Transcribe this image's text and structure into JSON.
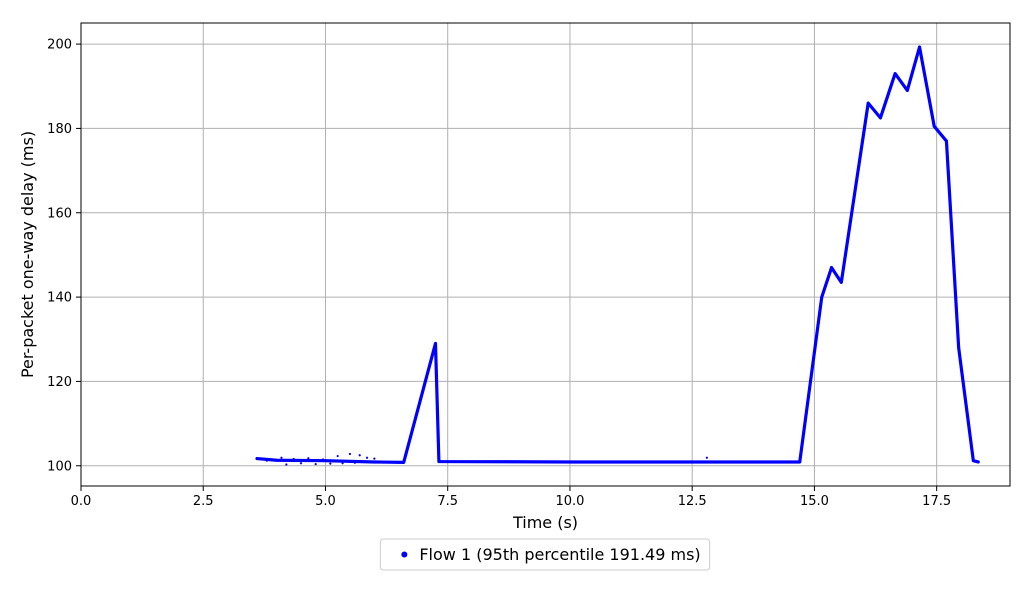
{
  "chart_data": {
    "type": "scatter",
    "title": "",
    "xlabel": "Time (s)",
    "ylabel": "Per-packet one-way delay (ms)",
    "xlim": [
      0,
      19
    ],
    "ylim": [
      95.2,
      205
    ],
    "xticks": [
      0.0,
      2.5,
      5.0,
      7.5,
      10.0,
      12.5,
      15.0,
      17.5
    ],
    "xtick_labels": [
      "0.0",
      "2.5",
      "5.0",
      "7.5",
      "10.0",
      "12.5",
      "15.0",
      "17.5"
    ],
    "yticks": [
      100,
      120,
      140,
      160,
      180,
      200
    ],
    "ytick_labels": [
      "100",
      "120",
      "140",
      "160",
      "180",
      "200"
    ],
    "grid": true,
    "legend_position": "bottom-center, below plot",
    "series": [
      {
        "name": "Flow 1 (95th percentile 191.49 ms)",
        "color": "#0000ff",
        "marker": "dot",
        "outline": [
          [
            3.6,
            101.7
          ],
          [
            4.0,
            101.3
          ],
          [
            5.0,
            101.2
          ],
          [
            6.0,
            100.9
          ],
          [
            6.6,
            100.8
          ],
          [
            7.25,
            129.0
          ],
          [
            7.32,
            101.0
          ],
          [
            10.0,
            100.9
          ],
          [
            12.5,
            100.9
          ],
          [
            14.7,
            100.9
          ],
          [
            15.15,
            140.0
          ],
          [
            15.35,
            147.0
          ],
          [
            15.55,
            143.5
          ],
          [
            16.1,
            186.0
          ],
          [
            16.35,
            182.5
          ],
          [
            16.65,
            193.0
          ],
          [
            16.9,
            189.0
          ],
          [
            17.15,
            199.3
          ],
          [
            17.45,
            180.5
          ],
          [
            17.7,
            177.0
          ],
          [
            17.95,
            128.0
          ],
          [
            18.25,
            101.2
          ],
          [
            18.35,
            100.9
          ]
        ],
        "scattered_points": [
          [
            3.6,
            101.8
          ],
          [
            3.8,
            101.2
          ],
          [
            4.1,
            101.9
          ],
          [
            4.2,
            100.3
          ],
          [
            4.35,
            101.6
          ],
          [
            4.5,
            100.6
          ],
          [
            4.65,
            101.8
          ],
          [
            4.8,
            100.4
          ],
          [
            4.95,
            101.5
          ],
          [
            5.1,
            100.5
          ],
          [
            5.25,
            102.3
          ],
          [
            5.35,
            100.6
          ],
          [
            5.5,
            102.8
          ],
          [
            5.6,
            100.7
          ],
          [
            5.7,
            102.5
          ],
          [
            5.85,
            101.9
          ],
          [
            6.0,
            101.7
          ],
          [
            6.15,
            100.8
          ],
          [
            12.8,
            101.9
          ]
        ]
      }
    ]
  }
}
